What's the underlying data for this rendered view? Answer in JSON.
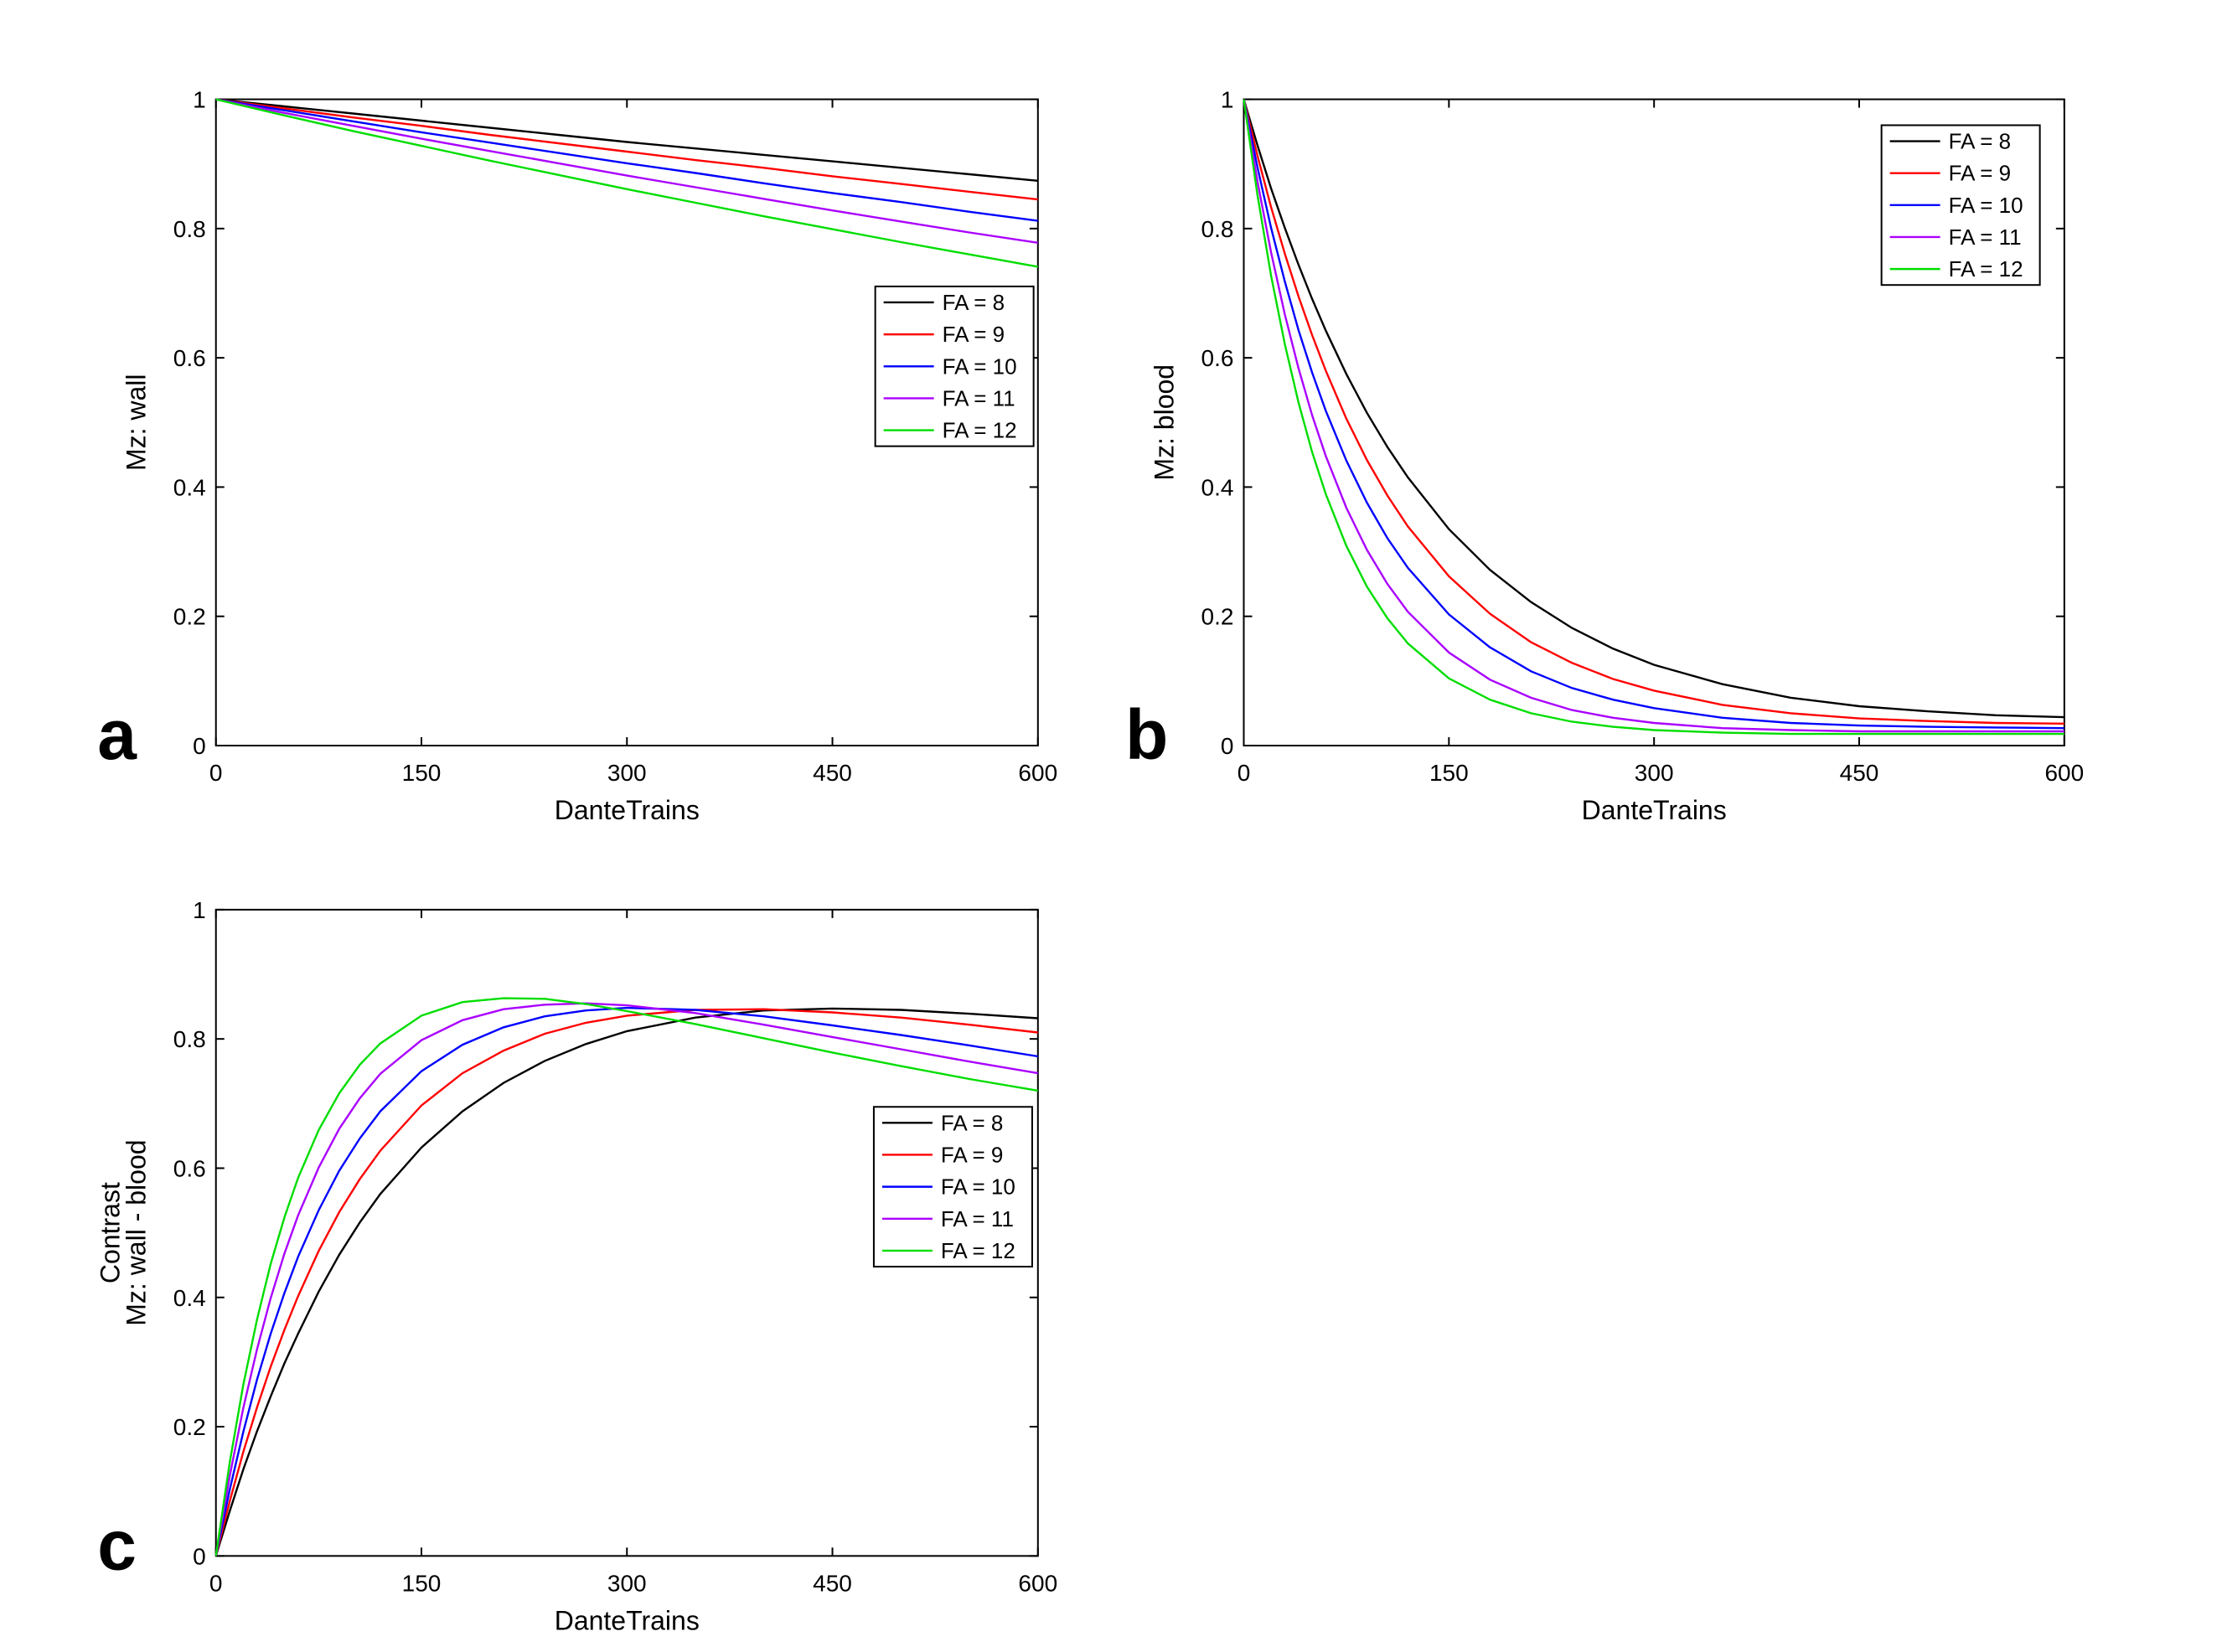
{
  "chart_data": [
    {
      "type": "line",
      "panel_label": "a",
      "xlabel": "DanteTrains",
      "ylabel": [
        "Mz: wall"
      ],
      "xlim": [
        0,
        600
      ],
      "ylim": [
        0,
        1
      ],
      "xticks": [
        "0",
        "150",
        "300",
        "450",
        "600"
      ],
      "yticks": [
        "0",
        "0.2",
        "0.4",
        "0.6",
        "0.8",
        "1"
      ],
      "legend_position": "center-right",
      "x": [
        0,
        50,
        100,
        150,
        200,
        250,
        300,
        350,
        400,
        450,
        500,
        550,
        600
      ],
      "series": [
        {
          "name": "FA = 8",
          "color": "#000000",
          "values": [
            1.0,
            0.989,
            0.978,
            0.967,
            0.956,
            0.945,
            0.934,
            0.924,
            0.914,
            0.904,
            0.894,
            0.884,
            0.874
          ]
        },
        {
          "name": "FA = 9",
          "color": "#ff0000",
          "values": [
            1.0,
            0.986,
            0.972,
            0.959,
            0.945,
            0.932,
            0.919,
            0.906,
            0.894,
            0.881,
            0.869,
            0.857,
            0.845
          ]
        },
        {
          "name": "FA = 10",
          "color": "#0000ff",
          "values": [
            1.0,
            0.983,
            0.966,
            0.949,
            0.933,
            0.917,
            0.901,
            0.886,
            0.87,
            0.855,
            0.841,
            0.826,
            0.812
          ]
        },
        {
          "name": "FA = 11",
          "color": "#aa00ff",
          "values": [
            1.0,
            0.979,
            0.959,
            0.939,
            0.92,
            0.901,
            0.882,
            0.864,
            0.846,
            0.828,
            0.811,
            0.794,
            0.778
          ]
        },
        {
          "name": "FA = 12",
          "color": "#00dd00",
          "values": [
            1.0,
            0.975,
            0.951,
            0.928,
            0.905,
            0.883,
            0.861,
            0.84,
            0.819,
            0.799,
            0.779,
            0.76,
            0.741
          ]
        }
      ]
    },
    {
      "type": "line",
      "panel_label": "b",
      "xlabel": "DanteTrains",
      "ylabel": [
        "Mz: blood"
      ],
      "xlim": [
        0,
        600
      ],
      "ylim": [
        0,
        1
      ],
      "xticks": [
        "0",
        "150",
        "300",
        "450",
        "600"
      ],
      "yticks": [
        "0",
        "0.2",
        "0.4",
        "0.6",
        "0.8",
        "1"
      ],
      "legend_position": "top-right",
      "x": [
        0,
        10,
        20,
        30,
        40,
        50,
        60,
        75,
        90,
        105,
        120,
        150,
        180,
        210,
        240,
        270,
        300,
        350,
        400,
        450,
        500,
        550,
        600
      ],
      "series": [
        {
          "name": "FA = 8",
          "color": "#000000",
          "values": [
            1.0,
            0.929,
            0.862,
            0.801,
            0.744,
            0.691,
            0.642,
            0.575,
            0.515,
            0.462,
            0.415,
            0.335,
            0.272,
            0.222,
            0.182,
            0.15,
            0.125,
            0.095,
            0.074,
            0.061,
            0.053,
            0.047,
            0.044
          ]
        },
        {
          "name": "FA = 9",
          "color": "#ff0000",
          "values": [
            1.0,
            0.913,
            0.833,
            0.761,
            0.695,
            0.635,
            0.58,
            0.506,
            0.442,
            0.387,
            0.339,
            0.262,
            0.204,
            0.16,
            0.128,
            0.103,
            0.085,
            0.063,
            0.05,
            0.042,
            0.038,
            0.035,
            0.034
          ]
        },
        {
          "name": "FA = 10",
          "color": "#0000ff",
          "values": [
            1.0,
            0.895,
            0.801,
            0.718,
            0.643,
            0.577,
            0.518,
            0.441,
            0.376,
            0.321,
            0.275,
            0.203,
            0.152,
            0.115,
            0.089,
            0.071,
            0.058,
            0.043,
            0.035,
            0.031,
            0.029,
            0.028,
            0.027
          ]
        },
        {
          "name": "FA = 11",
          "color": "#aa00ff",
          "values": [
            1.0,
            0.873,
            0.763,
            0.667,
            0.584,
            0.511,
            0.448,
            0.368,
            0.303,
            0.25,
            0.207,
            0.144,
            0.102,
            0.074,
            0.055,
            0.043,
            0.035,
            0.027,
            0.024,
            0.022,
            0.022,
            0.022,
            0.022
          ]
        },
        {
          "name": "FA = 12",
          "color": "#00dd00",
          "values": [
            1.0,
            0.852,
            0.727,
            0.621,
            0.531,
            0.454,
            0.389,
            0.309,
            0.246,
            0.197,
            0.158,
            0.104,
            0.071,
            0.05,
            0.037,
            0.029,
            0.024,
            0.02,
            0.018,
            0.018,
            0.018,
            0.018,
            0.018
          ]
        }
      ]
    },
    {
      "type": "line",
      "panel_label": "c",
      "xlabel": "DanteTrains",
      "ylabel": [
        "Contrast",
        "Mz: wall - blood"
      ],
      "xlim": [
        0,
        600
      ],
      "ylim": [
        0,
        1
      ],
      "xticks": [
        "0",
        "150",
        "300",
        "450",
        "600"
      ],
      "yticks": [
        "0",
        "0.2",
        "0.4",
        "0.6",
        "0.8",
        "1"
      ],
      "legend_position": "center-right",
      "x": [
        0,
        10,
        20,
        30,
        40,
        50,
        60,
        75,
        90,
        105,
        120,
        150,
        180,
        210,
        240,
        270,
        300,
        350,
        400,
        450,
        500,
        550,
        600
      ],
      "series": [
        {
          "name": "FA = 8",
          "color": "#000000",
          "values": [
            0.0,
            0.069,
            0.134,
            0.193,
            0.247,
            0.298,
            0.344,
            0.409,
            0.466,
            0.516,
            0.56,
            0.632,
            0.688,
            0.732,
            0.766,
            0.792,
            0.812,
            0.833,
            0.844,
            0.847,
            0.845,
            0.839,
            0.832
          ]
        },
        {
          "name": "FA = 9",
          "color": "#ff0000",
          "values": [
            0.0,
            0.084,
            0.161,
            0.23,
            0.293,
            0.35,
            0.402,
            0.472,
            0.532,
            0.583,
            0.627,
            0.697,
            0.747,
            0.782,
            0.808,
            0.825,
            0.836,
            0.845,
            0.846,
            0.841,
            0.833,
            0.822,
            0.81
          ]
        },
        {
          "name": "FA = 10",
          "color": "#0000ff",
          "values": [
            0.0,
            0.102,
            0.192,
            0.273,
            0.344,
            0.407,
            0.463,
            0.535,
            0.596,
            0.646,
            0.688,
            0.75,
            0.791,
            0.818,
            0.835,
            0.844,
            0.848,
            0.845,
            0.835,
            0.821,
            0.806,
            0.79,
            0.773
          ]
        },
        {
          "name": "FA = 11",
          "color": "#aa00ff",
          "values": [
            0.0,
            0.123,
            0.229,
            0.32,
            0.399,
            0.468,
            0.527,
            0.601,
            0.661,
            0.708,
            0.746,
            0.798,
            0.829,
            0.846,
            0.853,
            0.855,
            0.852,
            0.84,
            0.822,
            0.803,
            0.784,
            0.765,
            0.747
          ]
        },
        {
          "name": "FA = 12",
          "color": "#00dd00",
          "values": [
            0.0,
            0.144,
            0.265,
            0.366,
            0.452,
            0.524,
            0.585,
            0.659,
            0.716,
            0.76,
            0.793,
            0.836,
            0.857,
            0.863,
            0.862,
            0.854,
            0.843,
            0.823,
            0.801,
            0.779,
            0.758,
            0.738,
            0.72
          ]
        }
      ]
    }
  ]
}
